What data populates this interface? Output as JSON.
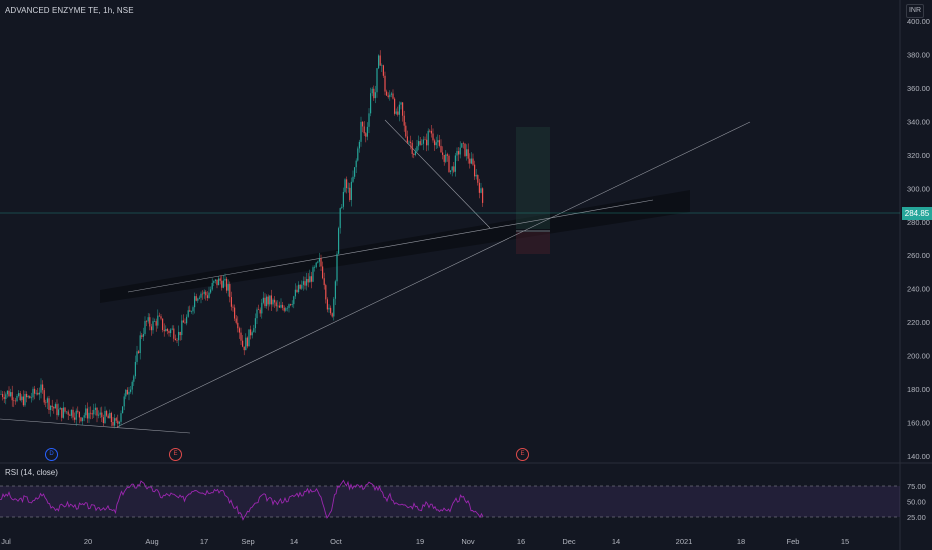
{
  "header": {
    "title": "ADVANCED ENZYME TE, 1h, NSE",
    "currency": "INR"
  },
  "rsi_panel": {
    "title": "RSI (14, close)",
    "ticks": [
      "75.00",
      "50.00",
      "25.00"
    ]
  },
  "events": {
    "dividend": "D",
    "earnings_1": "E",
    "earnings_2": "E"
  },
  "colors": {
    "background": "#131722",
    "up": "#26a69a",
    "down": "#ef5350",
    "rsi_line": "#9c27b0",
    "trendline": "#9598a1",
    "price_badge": "#26a69a"
  },
  "chart_data": {
    "type": "candlestick",
    "symbol": "ADVANCED ENZYME TE",
    "interval": "1h",
    "exchange": "NSE",
    "ylim": [
      135,
      410
    ],
    "y_ticks": [
      "400.00",
      "380.00",
      "360.00",
      "340.00",
      "320.00",
      "300.00",
      "280.00",
      "260.00",
      "240.00",
      "220.00",
      "200.00",
      "180.00",
      "160.00",
      "140.00"
    ],
    "x_ticks": [
      "Jul",
      "20",
      "Aug",
      "17",
      "Sep",
      "14",
      "Oct",
      "19",
      "Nov",
      "16",
      "Dec",
      "14",
      "2021",
      "18",
      "Feb",
      "15"
    ],
    "last_price": "284.85",
    "price_path": [
      [
        0,
        177
      ],
      [
        10,
        178
      ],
      [
        20,
        173
      ],
      [
        30,
        175
      ],
      [
        40,
        180
      ],
      [
        48,
        172
      ],
      [
        55,
        168
      ],
      [
        60,
        166
      ],
      [
        70,
        167
      ],
      [
        80,
        164
      ],
      [
        90,
        166
      ],
      [
        100,
        164
      ],
      [
        110,
        162
      ],
      [
        117,
        158
      ],
      [
        122,
        170
      ],
      [
        128,
        180
      ],
      [
        134,
        188
      ],
      [
        140,
        210
      ],
      [
        146,
        220
      ],
      [
        152,
        218
      ],
      [
        158,
        222
      ],
      [
        165,
        215
      ],
      [
        172,
        215
      ],
      [
        178,
        212
      ],
      [
        184,
        220
      ],
      [
        190,
        225
      ],
      [
        194,
        235
      ],
      [
        200,
        238
      ],
      [
        207,
        236
      ],
      [
        214,
        243
      ],
      [
        221,
        245
      ],
      [
        228,
        240
      ],
      [
        233,
        228
      ],
      [
        238,
        220
      ],
      [
        243,
        205
      ],
      [
        248,
        210
      ],
      [
        254,
        220
      ],
      [
        260,
        228
      ],
      [
        266,
        233
      ],
      [
        272,
        232
      ],
      [
        279,
        227
      ],
      [
        285,
        230
      ],
      [
        291,
        233
      ],
      [
        297,
        238
      ],
      [
        303,
        242
      ],
      [
        309,
        245
      ],
      [
        314,
        250
      ],
      [
        320,
        256
      ],
      [
        324,
        246
      ],
      [
        327,
        232
      ],
      [
        330,
        222
      ],
      [
        333,
        228
      ],
      [
        337,
        262
      ],
      [
        341,
        290
      ],
      [
        345,
        302
      ],
      [
        350,
        296
      ],
      [
        356,
        315
      ],
      [
        361,
        338
      ],
      [
        366,
        330
      ],
      [
        371,
        360
      ],
      [
        375,
        355
      ],
      [
        378,
        375
      ],
      [
        381,
        378
      ],
      [
        384,
        362
      ],
      [
        388,
        352
      ],
      [
        392,
        360
      ],
      [
        396,
        342
      ],
      [
        401,
        348
      ],
      [
        405,
        333
      ],
      [
        410,
        328
      ],
      [
        415,
        320
      ],
      [
        420,
        330
      ],
      [
        425,
        326
      ],
      [
        430,
        335
      ],
      [
        436,
        328
      ],
      [
        440,
        322
      ],
      [
        446,
        318
      ],
      [
        451,
        310
      ],
      [
        455,
        315
      ],
      [
        460,
        325
      ],
      [
        466,
        322
      ],
      [
        471,
        315
      ],
      [
        476,
        308
      ],
      [
        480,
        300
      ],
      [
        484,
        287
      ]
    ],
    "rsi_path": [
      [
        0,
        55
      ],
      [
        8,
        62
      ],
      [
        15,
        50
      ],
      [
        25,
        56
      ],
      [
        33,
        48
      ],
      [
        42,
        63
      ],
      [
        50,
        45
      ],
      [
        58,
        38
      ],
      [
        66,
        46
      ],
      [
        75,
        42
      ],
      [
        85,
        44
      ],
      [
        95,
        39
      ],
      [
        105,
        41
      ],
      [
        115,
        32
      ],
      [
        120,
        58
      ],
      [
        125,
        70
      ],
      [
        132,
        74
      ],
      [
        138,
        76
      ],
      [
        143,
        84
      ],
      [
        148,
        70
      ],
      [
        155,
        68
      ],
      [
        162,
        58
      ],
      [
        170,
        62
      ],
      [
        178,
        56
      ],
      [
        184,
        54
      ],
      [
        190,
        66
      ],
      [
        196,
        72
      ],
      [
        203,
        64
      ],
      [
        210,
        68
      ],
      [
        218,
        70
      ],
      [
        226,
        60
      ],
      [
        233,
        44
      ],
      [
        239,
        34
      ],
      [
        244,
        22
      ],
      [
        250,
        38
      ],
      [
        256,
        45
      ],
      [
        262,
        60
      ],
      [
        268,
        55
      ],
      [
        275,
        46
      ],
      [
        282,
        52
      ],
      [
        290,
        55
      ],
      [
        297,
        62
      ],
      [
        305,
        64
      ],
      [
        312,
        70
      ],
      [
        318,
        66
      ],
      [
        323,
        48
      ],
      [
        327,
        28
      ],
      [
        331,
        35
      ],
      [
        336,
        66
      ],
      [
        340,
        78
      ],
      [
        345,
        82
      ],
      [
        350,
        74
      ],
      [
        356,
        78
      ],
      [
        362,
        72
      ],
      [
        368,
        80
      ],
      [
        374,
        74
      ],
      [
        380,
        70
      ],
      [
        385,
        52
      ],
      [
        390,
        58
      ],
      [
        396,
        45
      ],
      [
        402,
        50
      ],
      [
        408,
        38
      ],
      [
        414,
        44
      ],
      [
        420,
        36
      ],
      [
        426,
        48
      ],
      [
        432,
        42
      ],
      [
        438,
        36
      ],
      [
        444,
        40
      ],
      [
        450,
        32
      ],
      [
        455,
        50
      ],
      [
        460,
        56
      ],
      [
        466,
        52
      ],
      [
        471,
        40
      ],
      [
        476,
        33
      ],
      [
        481,
        26
      ],
      [
        484,
        22
      ]
    ],
    "rsi_levels": [
      70,
      30
    ],
    "grid": false
  }
}
